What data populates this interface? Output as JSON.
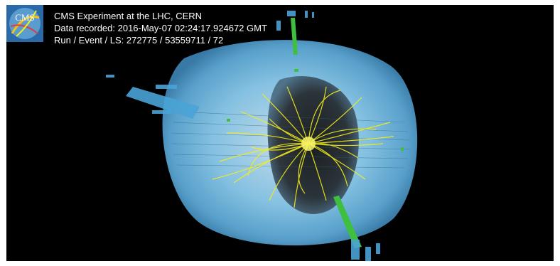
{
  "overlay": {
    "logo_text": "CMS",
    "lines": [
      "CMS Experiment at the LHC, CERN",
      "Data recorded: 2016-May-07 02:24:17.924672 GMT",
      "Run / Event / LS: 272775 / 53559711 / 72"
    ]
  },
  "colors": {
    "background": "#000000",
    "detector": "#7ec4e8",
    "tracks": "#f4ee1a",
    "jets": "#3fbf3f",
    "muon_chambers": "#4aa3d6"
  }
}
